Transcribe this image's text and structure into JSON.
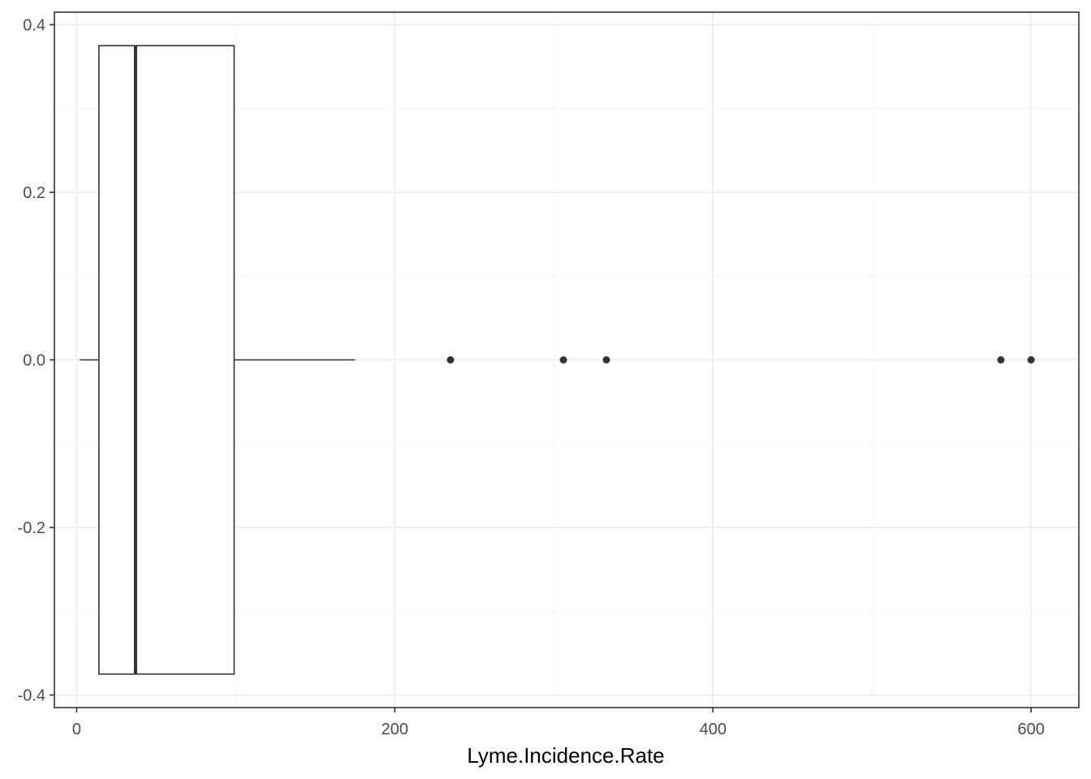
{
  "chart_data": {
    "type": "boxplot",
    "xlabel": "Lyme.Incidence.Rate",
    "ylabel": "",
    "xlim": [
      -14,
      630
    ],
    "ylim": [
      -0.415,
      0.415
    ],
    "x_ticks": [
      0,
      200,
      400,
      600
    ],
    "x_tick_labels": [
      "0",
      "200",
      "400",
      "600"
    ],
    "y_ticks": [
      0.4,
      0.2,
      0.0,
      -0.2,
      -0.4
    ],
    "y_tick_labels": [
      "0.4",
      "0.2",
      "0.0",
      "-0.2",
      "-0.4"
    ],
    "grid": true,
    "box": {
      "whisker_low": 2,
      "q1": 14,
      "median": 37,
      "q3": 99,
      "whisker_high": 175,
      "y_center": 0.0,
      "y_half_height": 0.375
    },
    "outliers": [
      235,
      306,
      333,
      581,
      600
    ],
    "colors": {
      "panel_border": "#333333",
      "grid_major": "#ebebeb",
      "grid_minor": "#f5f5f5",
      "box_line": "#333333",
      "tick_text": "#4d4d4d"
    }
  }
}
